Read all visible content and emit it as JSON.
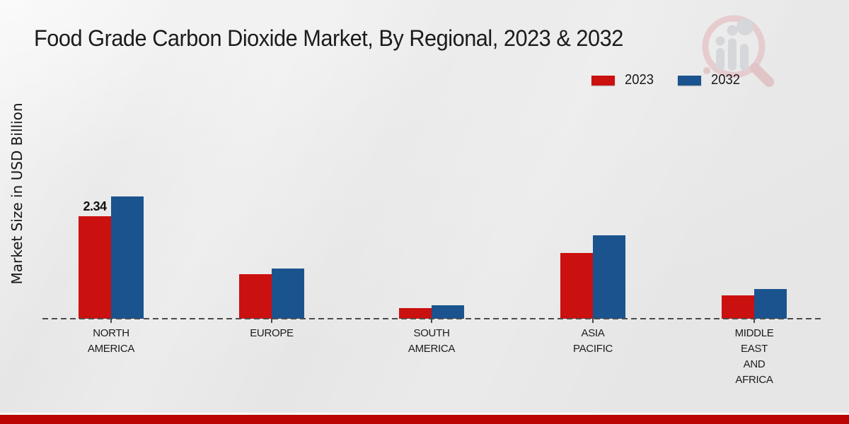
{
  "chart_data": {
    "type": "bar",
    "title": "Food Grade Carbon Dioxide Market, By Regional, 2023 & 2032",
    "xlabel": "",
    "ylabel": "Market Size in USD Billion",
    "ylim": [
      0,
      3
    ],
    "grid": false,
    "legend_position": "top-right",
    "baseline_style": "dashed",
    "categories": [
      {
        "label": "North America",
        "lines": [
          "NORTH",
          "AMERICA"
        ]
      },
      {
        "label": "Europe",
        "lines": [
          "EUROPE"
        ]
      },
      {
        "label": "South America",
        "lines": [
          "SOUTH",
          "AMERICA"
        ]
      },
      {
        "label": "Asia Pacific",
        "lines": [
          "ASIA",
          "PACIFIC"
        ]
      },
      {
        "label": "Middle East and Africa",
        "lines": [
          "MIDDLE",
          "EAST",
          "AND",
          "AFRICA"
        ]
      }
    ],
    "series": [
      {
        "name": "2023",
        "color": "#cb1010",
        "values": [
          2.34,
          1.02,
          0.24,
          1.5,
          0.54
        ]
      },
      {
        "name": "2032",
        "color": "#1b538f",
        "values": [
          2.79,
          1.15,
          0.3,
          1.9,
          0.67
        ]
      }
    ],
    "annotations": [
      {
        "text": "2.34",
        "series_index": 0,
        "category_index": 0
      }
    ]
  },
  "colors": {
    "series_2023": "#cb1010",
    "series_2032": "#1b538f",
    "background": "#ebebeb",
    "axis_dash": "#4c4c4c",
    "footer_strip": "#bb0404",
    "text": "#1b1b1b"
  },
  "footer": {},
  "watermark": {
    "name": "magnifier-bar-chart-logo"
  }
}
